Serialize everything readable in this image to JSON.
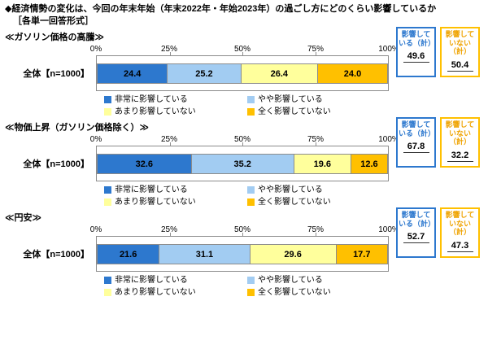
{
  "title": "◆経済情勢の変化は、今回の年末年始（年末2022年・年始2023年）の過ごし方にどのくらい影響しているか",
  "subtitle": "［各単一回答形式］",
  "row_label": "全体【n=1000】",
  "axis_ticks": [
    "0%",
    "25%",
    "50%",
    "75%",
    "100%"
  ],
  "legend": [
    {
      "label": "非常に影響している",
      "color": "#2d78ce"
    },
    {
      "label": "やや影響している",
      "color": "#a2ccf2"
    },
    {
      "label": "あまり影響していない",
      "color": "#ffff9c"
    },
    {
      "label": "全く影響していない",
      "color": "#ffc000"
    }
  ],
  "summary_headers": {
    "yes": "影響している（計）",
    "no": "影響していない（計）"
  },
  "colors": {
    "box_blue": "#2d78ce",
    "box_orange": "#ffc000",
    "axis_gray": "#8c8c8c"
  },
  "sections": [
    {
      "heading": "≪ガソリン価格の高騰≫",
      "values": [
        24.4,
        25.2,
        26.4,
        24
      ],
      "labels": [
        "24.4",
        "25.2",
        "26.4",
        "24.0"
      ],
      "yes_total": "49.6",
      "no_total": "50.4"
    },
    {
      "heading": "≪物価上昇（ガソリン価格除く）≫",
      "values": [
        32.6,
        35.2,
        19.6,
        12.6
      ],
      "labels": [
        "32.6",
        "35.2",
        "19.6",
        "12.6"
      ],
      "yes_total": "67.8",
      "no_total": "32.2"
    },
    {
      "heading": "≪円安≫",
      "values": [
        21.6,
        31.1,
        29.6,
        17.7
      ],
      "labels": [
        "21.6",
        "31.1",
        "29.6",
        "17.7"
      ],
      "yes_total": "52.7",
      "no_total": "47.3"
    }
  ],
  "chart_data": [
    {
      "type": "bar",
      "stacked": true,
      "orientation": "horizontal",
      "title": "ガソリン価格の高騰",
      "categories": [
        "全体【n=1000】"
      ],
      "series": [
        {
          "name": "非常に影響している",
          "values": [
            24.4
          ]
        },
        {
          "name": "やや影響している",
          "values": [
            25.2
          ]
        },
        {
          "name": "あまり影響していない",
          "values": [
            26.4
          ]
        },
        {
          "name": "全く影響していない",
          "values": [
            24.0
          ]
        }
      ],
      "xlim": [
        0,
        100
      ],
      "x_ticks": [
        "0%",
        "25%",
        "50%",
        "75%",
        "100%"
      ],
      "totals": {
        "影響している（計）": 49.6,
        "影響していない（計）": 50.4
      },
      "legend_position": "bottom",
      "grid": false
    },
    {
      "type": "bar",
      "stacked": true,
      "orientation": "horizontal",
      "title": "物価上昇（ガソリン価格除く）",
      "categories": [
        "全体【n=1000】"
      ],
      "series": [
        {
          "name": "非常に影響している",
          "values": [
            32.6
          ]
        },
        {
          "name": "やや影響している",
          "values": [
            35.2
          ]
        },
        {
          "name": "あまり影響していない",
          "values": [
            19.6
          ]
        },
        {
          "name": "全く影響していない",
          "values": [
            12.6
          ]
        }
      ],
      "xlim": [
        0,
        100
      ],
      "x_ticks": [
        "0%",
        "25%",
        "50%",
        "75%",
        "100%"
      ],
      "totals": {
        "影響している（計）": 67.8,
        "影響していない（計）": 32.2
      },
      "legend_position": "bottom",
      "grid": false
    },
    {
      "type": "bar",
      "stacked": true,
      "orientation": "horizontal",
      "title": "円安",
      "categories": [
        "全体【n=1000】"
      ],
      "series": [
        {
          "name": "非常に影響している",
          "values": [
            21.6
          ]
        },
        {
          "name": "やや影響している",
          "values": [
            31.1
          ]
        },
        {
          "name": "あまり影響していない",
          "values": [
            29.6
          ]
        },
        {
          "name": "全く影響していない",
          "values": [
            17.7
          ]
        }
      ],
      "xlim": [
        0,
        100
      ],
      "x_ticks": [
        "0%",
        "25%",
        "50%",
        "75%",
        "100%"
      ],
      "totals": {
        "影響している（計）": 52.7,
        "影響していない（計）": 47.3
      },
      "legend_position": "bottom",
      "grid": false
    }
  ]
}
